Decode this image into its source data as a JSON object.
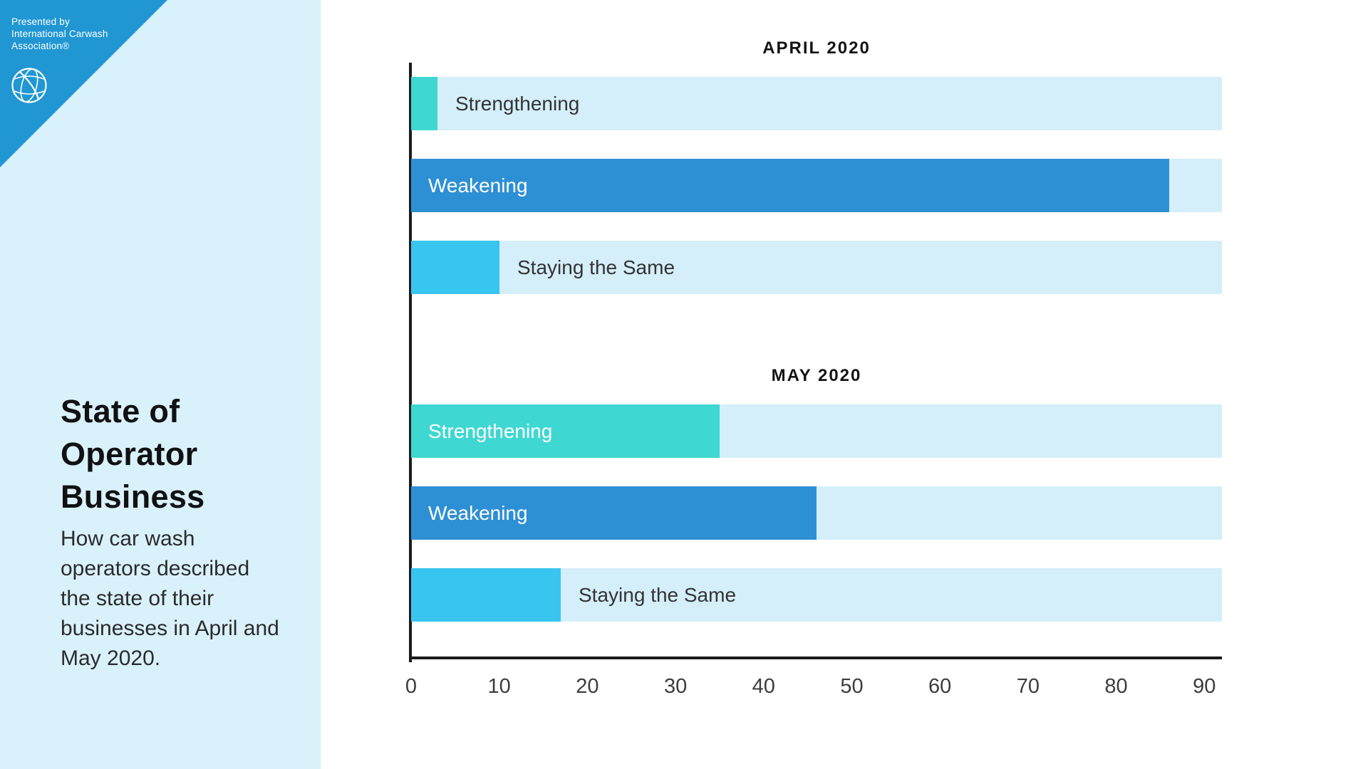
{
  "branding": {
    "presented_by_lines": [
      "Presented by",
      "International Carwash",
      "Association®"
    ],
    "corner_color": "#2097d3",
    "sidebar_bg": "#d9f1fb"
  },
  "sidebar": {
    "title_lines": [
      "State of",
      "Operator",
      "Business"
    ],
    "subtitle": "How car wash operators described the state of their businesses in April and May 2020."
  },
  "chart_data": {
    "type": "bar",
    "orientation": "horizontal",
    "xlim": [
      0,
      92
    ],
    "ticks": [
      0,
      10,
      20,
      30,
      40,
      50,
      60,
      70,
      80,
      90
    ],
    "grid": false,
    "legend": false,
    "groups": [
      {
        "title": "APRIL 2020",
        "categories": [
          "Strengthening",
          "Weakening",
          "Staying the Same"
        ],
        "bars": [
          {
            "label": "Strengthening",
            "value": 3,
            "color_key": "strengthening"
          },
          {
            "label": "Weakening",
            "value": 86,
            "color_key": "weakening"
          },
          {
            "label": "Staying the Same",
            "value": 10,
            "color_key": "staying"
          }
        ]
      },
      {
        "title": "MAY 2020",
        "categories": [
          "Strengthening",
          "Weakening",
          "Staying the Same"
        ],
        "bars": [
          {
            "label": "Strengthening",
            "value": 35,
            "color_key": "strengthening"
          },
          {
            "label": "Weakening",
            "value": 46,
            "color_key": "weakening"
          },
          {
            "label": "Staying the Same",
            "value": 17,
            "color_key": "staying"
          }
        ]
      }
    ],
    "colors": {
      "strengthening": "#3fd7d1",
      "weakening": "#2e90d4",
      "staying": "#38c5f0",
      "track": "#d4eefa",
      "axis": "#1b1b1b",
      "label_inside": "#ffffff",
      "label_outside": "#333333"
    }
  }
}
